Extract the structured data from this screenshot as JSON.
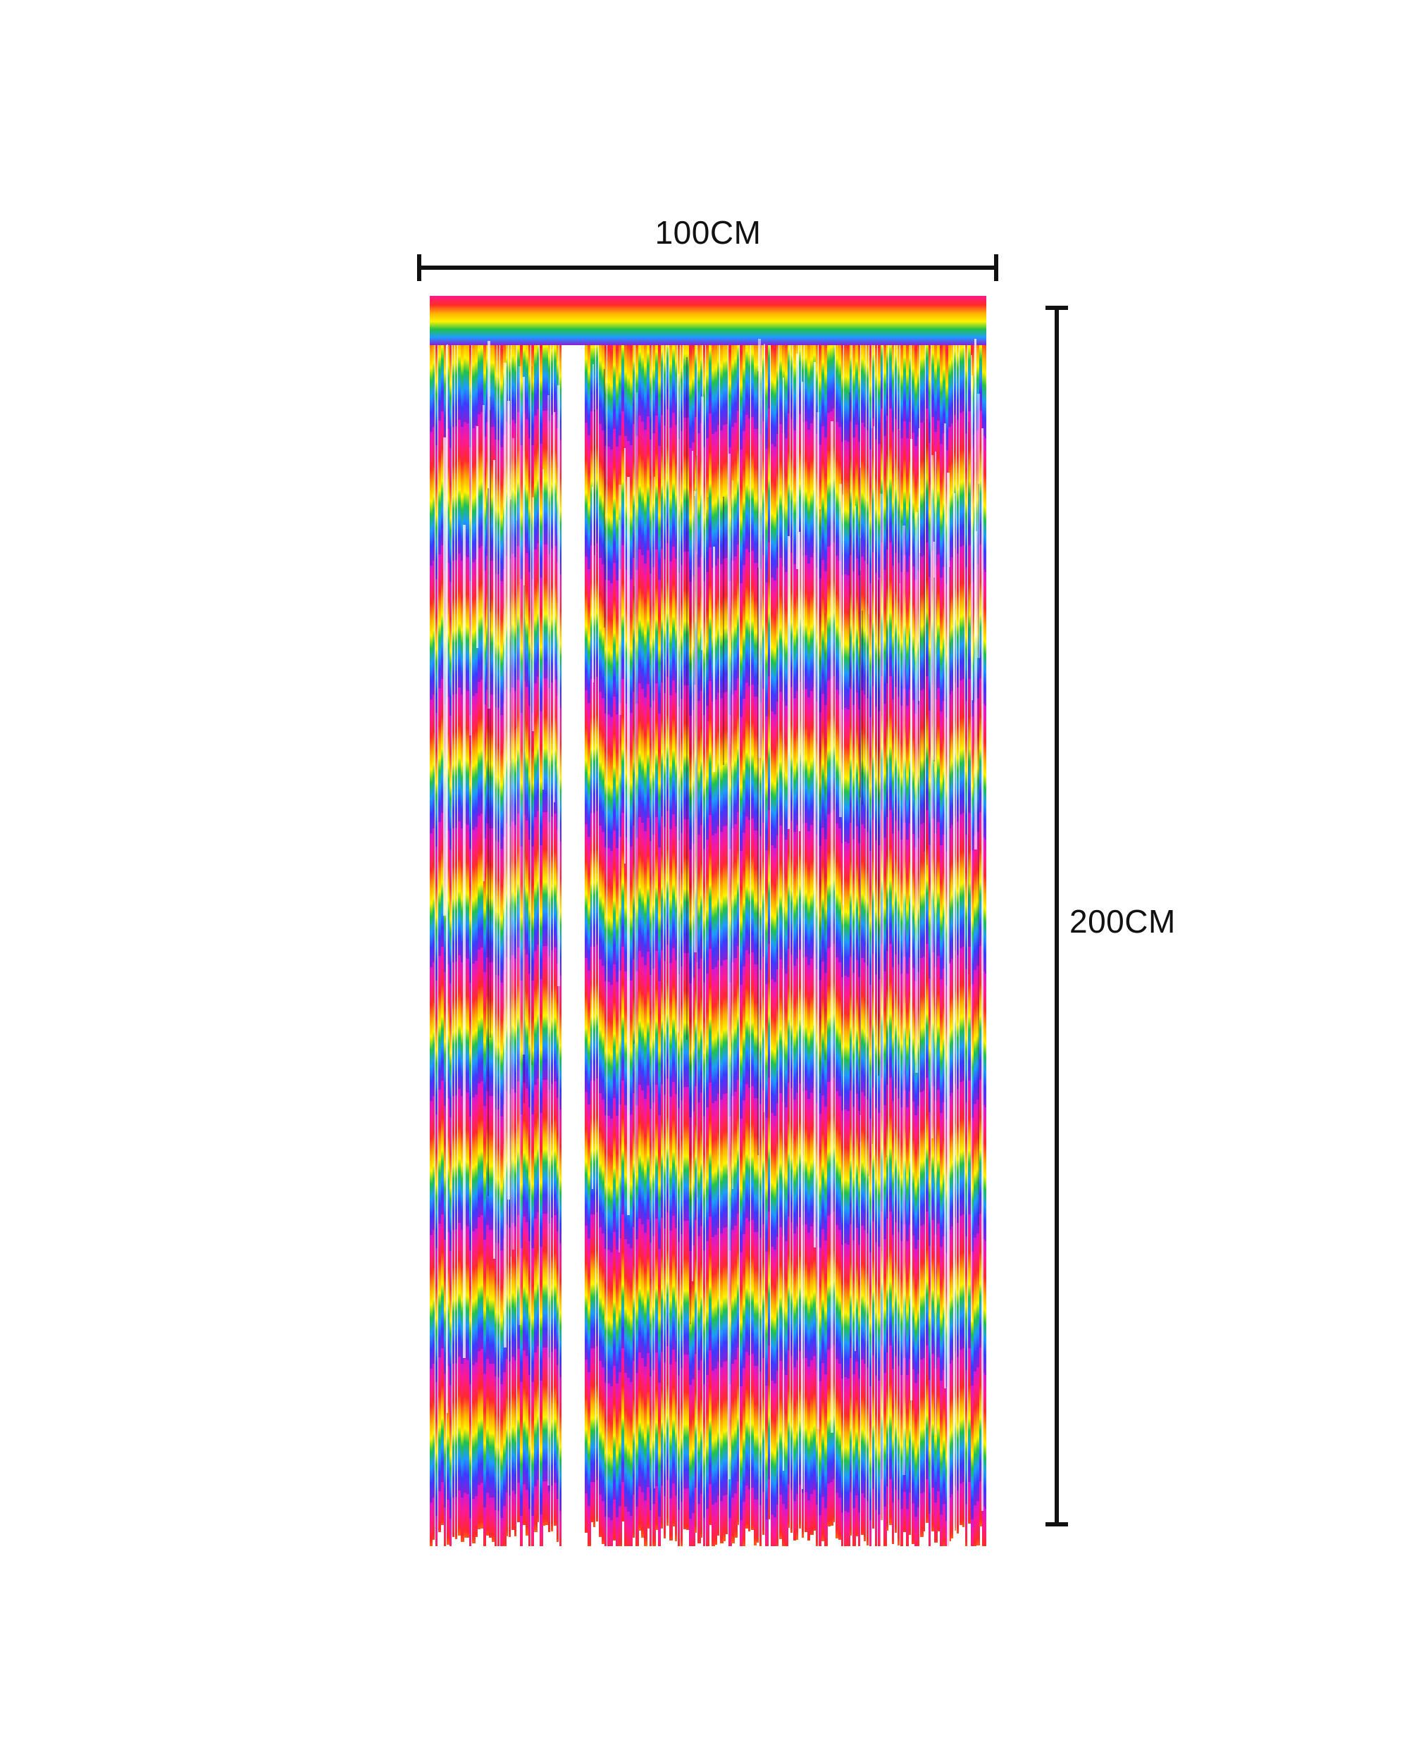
{
  "dimensions": {
    "width_label": "100CM",
    "height_label": "200CM"
  },
  "product": {
    "name": "rainbow-foil-fringe-curtain",
    "stripe_colors": [
      "#ff1a8c",
      "#ff2a2a",
      "#ffb300",
      "#fff200",
      "#22c24a",
      "#1e9bff",
      "#3b3bff",
      "#8a1fd6",
      "#d21ad2"
    ]
  },
  "colors": {
    "dimension_line": "#111111",
    "background": "#ffffff"
  }
}
